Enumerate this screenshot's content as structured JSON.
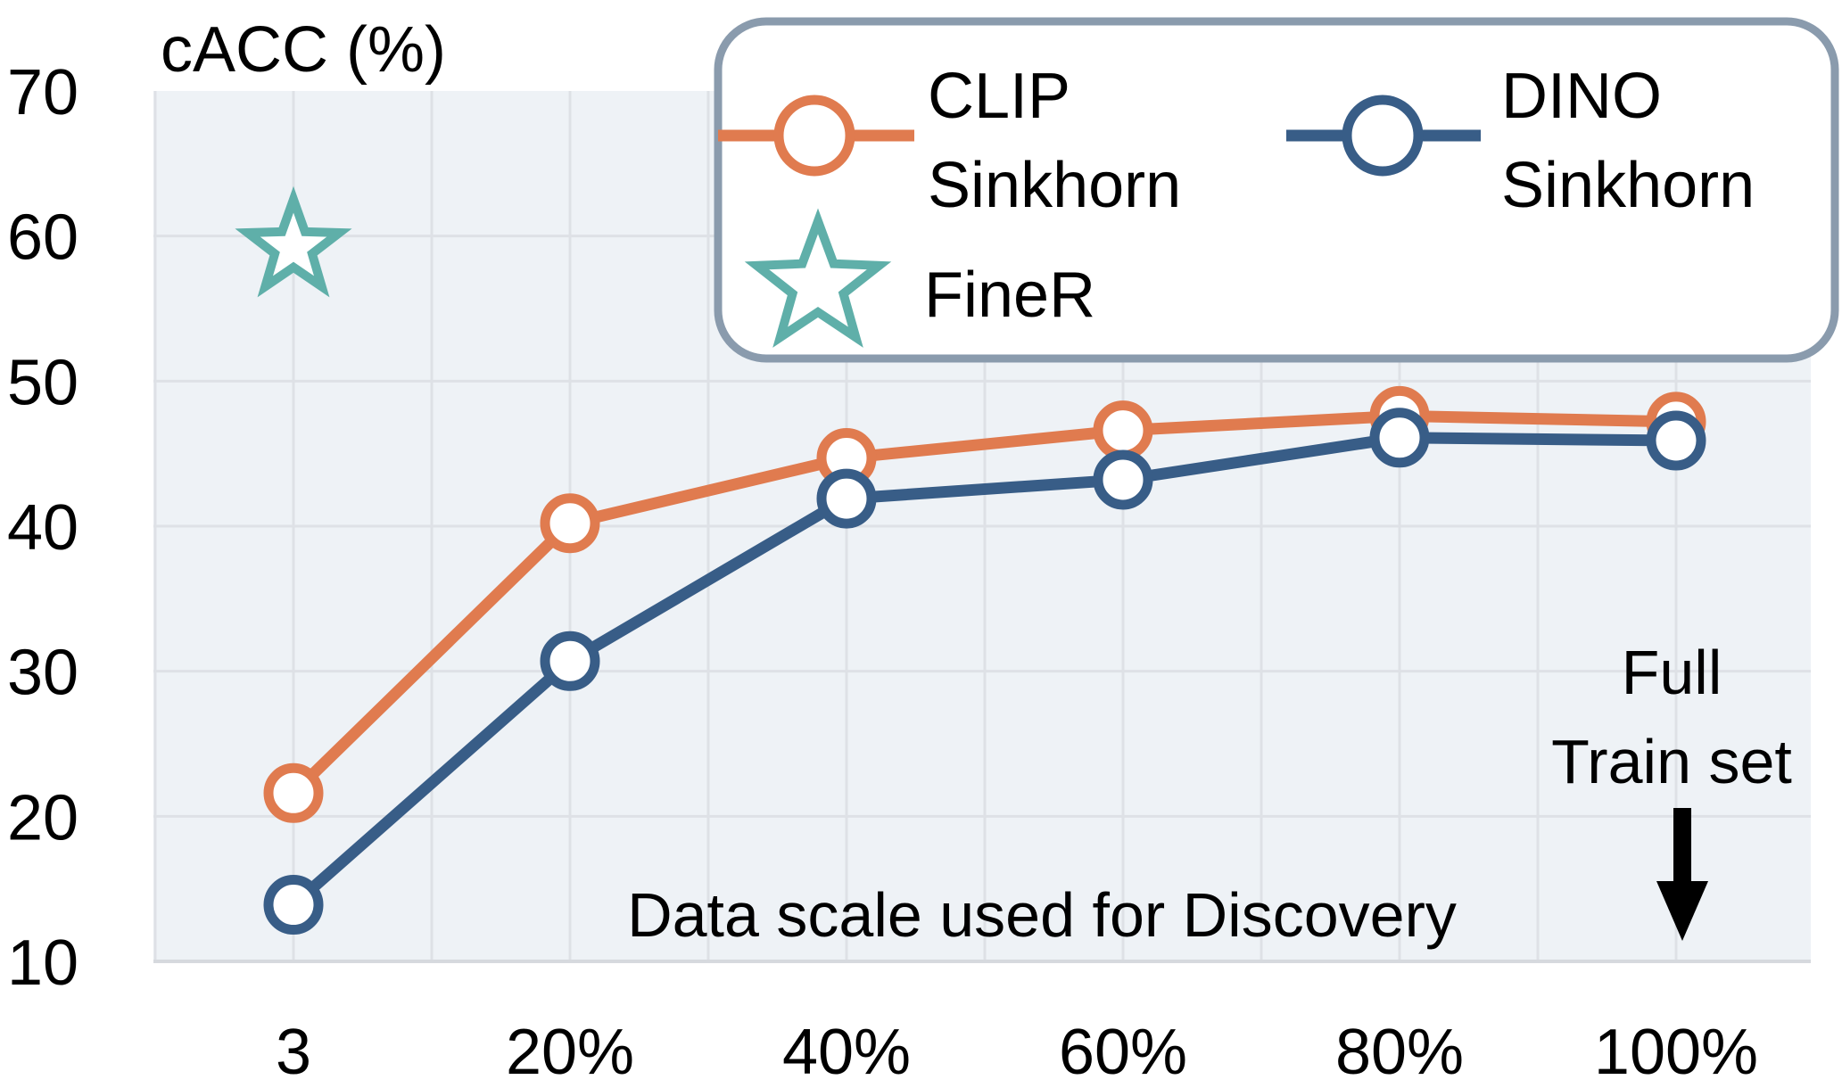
{
  "chart_data": {
    "type": "line",
    "categories": [
      "3",
      "20%",
      "40%",
      "60%",
      "80%",
      "100%"
    ],
    "ylabel": "cACC (%)",
    "ylim": [
      10,
      70
    ],
    "yticks": [
      "10",
      "20",
      "30",
      "40",
      "50",
      "60",
      "70"
    ],
    "grid": true,
    "legend_position": "top-right",
    "series": [
      {
        "name": "CLIP\nSinkhorn",
        "name_lines": [
          "CLIP",
          "Sinkhorn"
        ],
        "color": "#E07B4F",
        "marker": "circle",
        "values": [
          21.6,
          40.2,
          44.7,
          46.6,
          47.6,
          47.2
        ]
      },
      {
        "name": "DINO\nSinkhorn",
        "name_lines": [
          "DINO",
          "Sinkhorn"
        ],
        "color": "#385D87",
        "marker": "circle",
        "values": [
          13.9,
          30.7,
          41.9,
          43.2,
          46.1,
          45.9
        ]
      }
    ],
    "points": [
      {
        "name": "FineR",
        "name_lines": [
          "FineR"
        ],
        "color": "#5FAFA9",
        "marker": "star",
        "category": "3",
        "value": 59.2
      }
    ],
    "annotations": {
      "data_scale": "Data scale used for Discovery",
      "full_line1": "Full",
      "full_line2": "Train set"
    },
    "colors": {
      "plot_bg": "#EEF2F6",
      "grid": "#DEE1E6",
      "legend_border": "#8A9BAD"
    }
  }
}
